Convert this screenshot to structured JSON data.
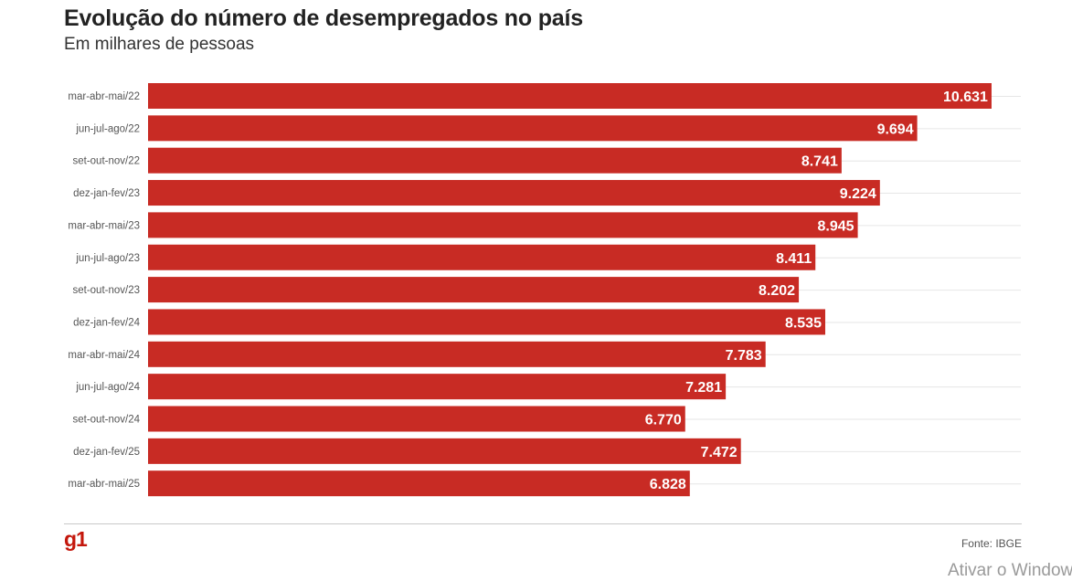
{
  "header": {
    "title": "Evolução do número de desempregados no país",
    "subtitle": "Em milhares de pessoas"
  },
  "footer": {
    "logo": "g1",
    "source": "Fonte: IBGE"
  },
  "overlay": {
    "watermark": "Ativar o Window"
  },
  "colors": {
    "bar": "#c82b24",
    "gridline": "#e6e6e6",
    "logo": "#c4170c"
  },
  "chart_data": {
    "type": "bar",
    "orientation": "horizontal",
    "title": "Evolução do número de desempregados no país",
    "subtitle": "Em milhares de pessoas",
    "categories": [
      "mar-abr-mai/22",
      "jun-jul-ago/22",
      "set-out-nov/22",
      "dez-jan-fev/23",
      "mar-abr-mai/23",
      "jun-jul-ago/23",
      "set-out-nov/23",
      "dez-jan-fev/24",
      "mar-abr-mai/24",
      "jun-jul-ago/24",
      "set-out-nov/24",
      "dez-jan-fev/25",
      "mar-abr-mai/25"
    ],
    "values": [
      10631,
      9694,
      8741,
      9224,
      8945,
      8411,
      8202,
      8535,
      7783,
      7281,
      6770,
      7472,
      6828
    ],
    "value_labels": [
      "10.631",
      "9.694",
      "8.741",
      "9.224",
      "8.945",
      "8.411",
      "8.202",
      "8.535",
      "7.783",
      "7.281",
      "6.770",
      "7.472",
      "6.828"
    ],
    "xlim": [
      0,
      11000
    ],
    "grid": true,
    "legend": "none"
  }
}
